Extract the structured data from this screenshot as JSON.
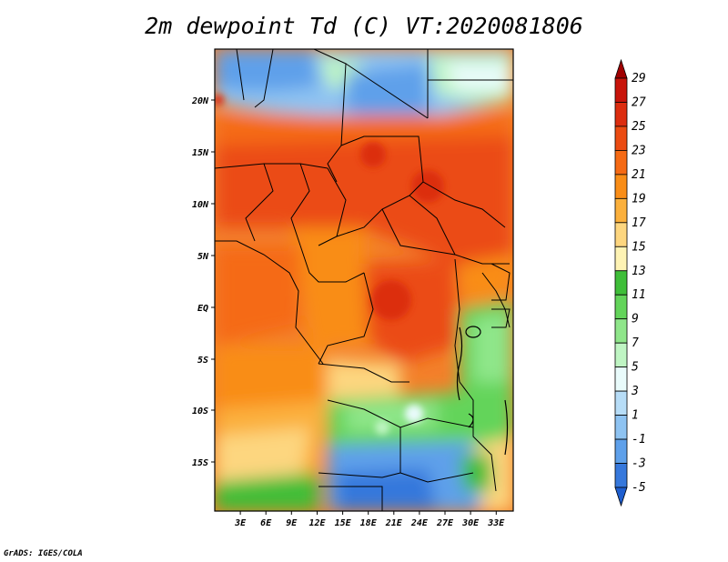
{
  "title": "2m dewpoint Td (C) VT:2020081806",
  "credit": "GrADS: IGES/COLA",
  "map": {
    "lon_ticks": [
      "3E",
      "6E",
      "9E",
      "12E",
      "15E",
      "18E",
      "21E",
      "24E",
      "27E",
      "30E",
      "33E"
    ],
    "lat_ticks": [
      "20N",
      "15N",
      "10N",
      "5N",
      "EQ",
      "5S",
      "10S",
      "15S"
    ],
    "lon_range": [
      0,
      35
    ],
    "lat_range": [
      -20,
      24.5
    ]
  },
  "colorbar": {
    "labels": [
      "29",
      "27",
      "25",
      "23",
      "21",
      "19",
      "17",
      "15",
      "13",
      "11",
      "9",
      "7",
      "5",
      "3",
      "1",
      "-1",
      "-3",
      "-5"
    ],
    "colors": [
      "#a00000",
      "#c8140a",
      "#dc2d0f",
      "#eb4b12",
      "#f56a14",
      "#f98d17",
      "#fbb03c",
      "#fdd67f",
      "#fef3b4",
      "#3fbe39",
      "#63d45a",
      "#8fe68a",
      "#bff5c3",
      "#e9fbfb",
      "#b7ddf7",
      "#8ec3f2",
      "#5ea0ea",
      "#3678dc",
      "#1e5ecf"
    ]
  }
}
